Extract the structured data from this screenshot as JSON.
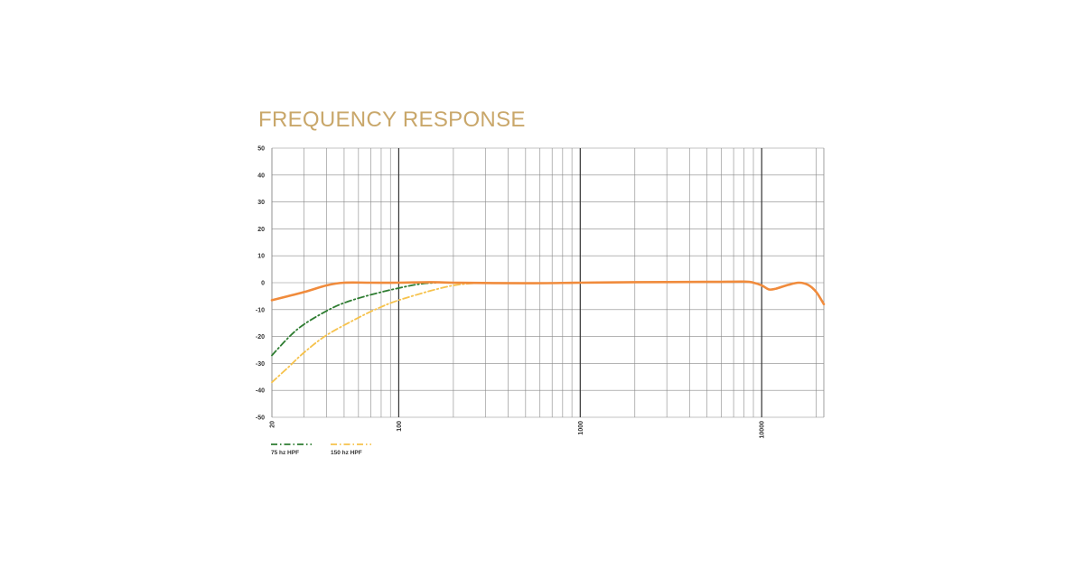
{
  "chart_data": {
    "type": "line",
    "title": "FREQUENCY RESPONSE",
    "xlabel": "",
    "ylabel": "",
    "x_scale": "log",
    "xlim": [
      20,
      22000
    ],
    "ylim": [
      -50,
      50
    ],
    "grid": true,
    "y_ticks": [
      50,
      40,
      30,
      20,
      10,
      0,
      -10,
      -20,
      -30,
      -40,
      -50
    ],
    "x_tick_labels": [
      "20",
      "100",
      "1000",
      "10000"
    ],
    "legend_position": "bottom-left",
    "colors": {
      "title": "#c9a76a",
      "main_response": "#f08b3c",
      "hpf_75": "#2f7d32",
      "hpf_150": "#f6c24c",
      "grid": "#888888"
    },
    "series": [
      {
        "key": "main",
        "style": "solid",
        "points": [
          [
            20,
            -6.5
          ],
          [
            30,
            -3.5
          ],
          [
            40,
            -1
          ],
          [
            50,
            0
          ],
          [
            70,
            0
          ],
          [
            100,
            0
          ],
          [
            150,
            0.2
          ],
          [
            200,
            0
          ],
          [
            500,
            -0.2
          ],
          [
            1000,
            0
          ],
          [
            2000,
            0.2
          ],
          [
            5000,
            0.3
          ],
          [
            8000,
            0.4
          ],
          [
            9000,
            0
          ],
          [
            10000,
            -1
          ],
          [
            11000,
            -2.5
          ],
          [
            12000,
            -2.2
          ],
          [
            14000,
            -0.8
          ],
          [
            16000,
            0
          ],
          [
            18000,
            -0.8
          ],
          [
            20000,
            -3.5
          ],
          [
            22000,
            -8
          ]
        ]
      },
      {
        "key": "hpf75",
        "name": "75 hz HPF",
        "style": "dashdot",
        "points": [
          [
            20,
            -27
          ],
          [
            25,
            -20
          ],
          [
            30,
            -15.5
          ],
          [
            40,
            -10.5
          ],
          [
            50,
            -7.5
          ],
          [
            70,
            -4.5
          ],
          [
            100,
            -2
          ],
          [
            130,
            -0.5
          ],
          [
            160,
            0
          ]
        ]
      },
      {
        "key": "hpf150",
        "name": "150 hz HPF",
        "style": "dashdot",
        "points": [
          [
            20,
            -37
          ],
          [
            25,
            -31
          ],
          [
            30,
            -26
          ],
          [
            40,
            -19.5
          ],
          [
            60,
            -13
          ],
          [
            80,
            -9
          ],
          [
            100,
            -6.5
          ],
          [
            150,
            -3
          ],
          [
            200,
            -1
          ],
          [
            250,
            -0.3
          ],
          [
            300,
            0
          ]
        ]
      }
    ]
  }
}
